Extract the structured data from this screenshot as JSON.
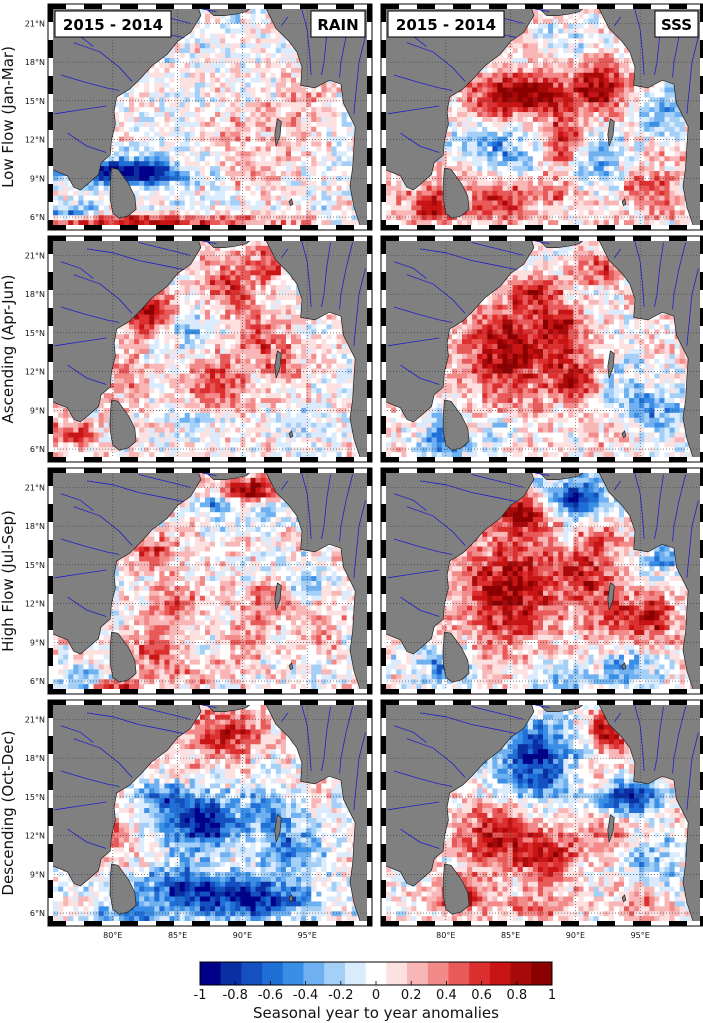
{
  "chart_data": {
    "type": "heatmap",
    "title": "",
    "columns": [
      {
        "period": "2015 - 2014",
        "variable": "RAIN"
      },
      {
        "period": "2015 - 2014",
        "variable": "SSS"
      }
    ],
    "rows": [
      {
        "label": "Low Flow (Jan-Mar)"
      },
      {
        "label": "Ascending (Apr-Jun)"
      },
      {
        "label": "High Flow (Jul-Sep)"
      },
      {
        "label": "Descending (Oct-Dec)"
      }
    ],
    "lon_range": [
      75,
      100
    ],
    "lat_range": [
      5,
      22.5
    ],
    "lon_ticks": [
      {
        "value": 80,
        "label": "80°E"
      },
      {
        "value": 85,
        "label": "85°E"
      },
      {
        "value": 90,
        "label": "90°E"
      },
      {
        "value": 95,
        "label": "95°E"
      }
    ],
    "lat_ticks": [
      {
        "value": 21,
        "label": "21°N"
      },
      {
        "value": 18,
        "label": "18°N"
      },
      {
        "value": 15,
        "label": "15°N"
      },
      {
        "value": 12,
        "label": "12°N"
      },
      {
        "value": 9,
        "label": "9°N"
      },
      {
        "value": 6,
        "label": "6°N"
      }
    ],
    "grid": true,
    "colorbar": {
      "range": [
        -1,
        1
      ],
      "ticks": [
        "-1",
        "-0.8",
        "-0.6",
        "-0.4",
        "-0.2",
        "0",
        "0.2",
        "0.4",
        "0.6",
        "0.8",
        "1"
      ],
      "label": "Seasonal year to year anomalies",
      "colors": [
        "#00008b",
        "#0a2fa3",
        "#1450c0",
        "#1f6fd6",
        "#3b8ee6",
        "#6fb0f0",
        "#a4cff7",
        "#d9ebfd",
        "#ffffff",
        "#fde0e0",
        "#f8b6b6",
        "#f28a8a",
        "#e85a5a",
        "#dc3030",
        "#c81414",
        "#a80a0a",
        "#8b0000"
      ]
    },
    "panels": [
      {
        "row": 0,
        "col": 0,
        "blobs": [
          [
            79.5,
            9.6,
            3.5,
            1.0,
            -0.95
          ],
          [
            83,
            9.4,
            2.5,
            0.9,
            -0.7
          ],
          [
            76.5,
            6.4,
            2.5,
            0.7,
            -0.5
          ],
          [
            77,
            5.6,
            3,
            0.5,
            0.6
          ],
          [
            82,
            5.7,
            3,
            0.5,
            0.7
          ],
          [
            87,
            5.7,
            4,
            0.5,
            0.55
          ],
          [
            93,
            5.7,
            3,
            0.5,
            0.3
          ],
          [
            89,
            13,
            2,
            2,
            0.2
          ],
          [
            93,
            12.5,
            2.5,
            3,
            0.25
          ],
          [
            95,
            16,
            1.5,
            2,
            0.2
          ],
          [
            91,
            9,
            2,
            1.5,
            0.2
          ]
        ],
        "base": 0
      },
      {
        "row": 0,
        "col": 1,
        "blobs": [
          [
            86,
            15.5,
            4,
            1.5,
            0.95
          ],
          [
            92,
            16,
            2,
            2,
            0.7
          ],
          [
            85,
            11,
            2,
            1.5,
            -0.5
          ],
          [
            82,
            11.5,
            2,
            1,
            -0.4
          ],
          [
            92,
            10.5,
            2,
            2,
            -0.5
          ],
          [
            97,
            14,
            2,
            1.5,
            -0.6
          ],
          [
            89,
            20,
            2,
            1,
            -0.3
          ],
          [
            79,
            7,
            2,
            1.5,
            0.7
          ],
          [
            84,
            7,
            2,
            1.5,
            0.6
          ],
          [
            96,
            8,
            2,
            1.5,
            0.5
          ],
          [
            88,
            8,
            2,
            1,
            0.4
          ],
          [
            89,
            12,
            1.5,
            2,
            0.6
          ]
        ],
        "base": 0.1
      },
      {
        "row": 1,
        "col": 0,
        "blobs": [
          [
            82.5,
            16.5,
            2,
            1.5,
            0.85
          ],
          [
            89,
            18.5,
            2,
            2,
            0.6
          ],
          [
            92,
            20.5,
            1.5,
            1.5,
            0.5
          ],
          [
            88,
            11,
            2,
            2,
            0.6
          ],
          [
            93,
            13,
            2,
            2,
            0.4
          ],
          [
            86,
            15,
            2,
            1.5,
            -0.3
          ],
          [
            86,
            8,
            2,
            1,
            -0.3
          ],
          [
            81,
            12,
            1.5,
            2,
            0.3
          ],
          [
            77,
            7,
            2,
            1.2,
            0.5
          ],
          [
            94,
            8,
            2,
            1,
            -0.3
          ],
          [
            91,
            15,
            1.5,
            1.5,
            0.45
          ]
        ],
        "base": 0.05
      },
      {
        "row": 1,
        "col": 1,
        "blobs": [
          [
            85,
            13.5,
            4,
            3.5,
            0.85
          ],
          [
            90,
            11.5,
            2,
            2,
            0.6
          ],
          [
            87,
            18,
            2,
            1.5,
            0.6
          ],
          [
            92,
            20,
            2,
            1.2,
            0.5
          ],
          [
            80,
            6.8,
            2,
            1.5,
            -0.6
          ],
          [
            94,
            11,
            2,
            2,
            -0.3
          ],
          [
            96,
            9,
            2,
            1.5,
            -0.5
          ],
          [
            84,
            7,
            1.5,
            1.5,
            -0.2
          ],
          [
            93,
            7,
            2,
            1,
            0.2
          ],
          [
            89,
            15.5,
            1.5,
            1.5,
            0.5
          ]
        ],
        "base": 0.05
      },
      {
        "row": 2,
        "col": 0,
        "blobs": [
          [
            90.5,
            20.8,
            1.8,
            1,
            0.95
          ],
          [
            88,
            19.5,
            1.5,
            0.8,
            -0.5
          ],
          [
            92,
            19,
            1.5,
            1,
            -0.4
          ],
          [
            83,
            16,
            2,
            1.5,
            0.5
          ],
          [
            85,
            12,
            2,
            1.5,
            0.55
          ],
          [
            92,
            12,
            2,
            1.5,
            0.5
          ],
          [
            83,
            8.5,
            2,
            1.5,
            0.5
          ],
          [
            90,
            9,
            2,
            1.5,
            0.3
          ],
          [
            78,
            6,
            2,
            1,
            -0.5
          ],
          [
            80,
            5.6,
            2,
            0.5,
            0.8
          ],
          [
            95,
            14,
            1.5,
            1.5,
            -0.3
          ],
          [
            96,
            10,
            1.5,
            1.5,
            0.4
          ],
          [
            86,
            6.5,
            3,
            1,
            0.3
          ]
        ],
        "base": 0.05
      },
      {
        "row": 2,
        "col": 1,
        "blobs": [
          [
            90,
            20.3,
            2.5,
            1.5,
            -0.98
          ],
          [
            86,
            19,
            2,
            1.5,
            0.9
          ],
          [
            85,
            13,
            4,
            4,
            0.85
          ],
          [
            91,
            14,
            2,
            2,
            0.6
          ],
          [
            93,
            11,
            2,
            2,
            0.5
          ],
          [
            96,
            11,
            1.5,
            2,
            0.7
          ],
          [
            80,
            7,
            2,
            1.5,
            -0.6
          ],
          [
            94,
            7,
            2,
            1.5,
            -0.5
          ],
          [
            89,
            6,
            2,
            1,
            -0.4
          ],
          [
            97,
            16,
            1.5,
            2,
            -0.5
          ],
          [
            92,
            17,
            1.5,
            1.5,
            0.4
          ]
        ],
        "base": 0.05
      },
      {
        "row": 3,
        "col": 0,
        "blobs": [
          [
            89,
            20,
            3,
            2,
            0.75
          ],
          [
            87,
            13,
            3,
            2,
            -0.95
          ],
          [
            84,
            15,
            2,
            1.5,
            -0.5
          ],
          [
            92,
            14,
            2,
            2,
            -0.5
          ],
          [
            80,
            12,
            2,
            2,
            0.4
          ],
          [
            86,
            8,
            4,
            1.5,
            -0.8
          ],
          [
            91,
            7,
            4,
            1.5,
            -0.85
          ],
          [
            82,
            6,
            3,
            1,
            -0.6
          ],
          [
            94,
            11,
            2,
            2,
            -0.5
          ],
          [
            96,
            16,
            1.5,
            2,
            0.2
          ],
          [
            85,
            17,
            2,
            1,
            0.3
          ]
        ],
        "base": 0
      },
      {
        "row": 3,
        "col": 1,
        "blobs": [
          [
            87,
            18,
            3,
            3,
            -0.98
          ],
          [
            92.5,
            20,
            1.5,
            1.3,
            0.95
          ],
          [
            94,
            15,
            2.5,
            1.2,
            -0.98
          ],
          [
            91,
            16,
            1.5,
            1,
            0.3
          ],
          [
            84,
            12,
            3,
            2.5,
            0.8
          ],
          [
            88,
            10,
            2,
            2,
            0.7
          ],
          [
            92,
            12,
            2,
            1.5,
            0.4
          ],
          [
            96,
            10,
            2,
            2,
            -0.4
          ],
          [
            81,
            7.5,
            2,
            1.5,
            0.7
          ],
          [
            87,
            6.5,
            3,
            1,
            0.4
          ],
          [
            95,
            7,
            2,
            1.5,
            0.3
          ]
        ],
        "base": 0.05
      }
    ]
  }
}
